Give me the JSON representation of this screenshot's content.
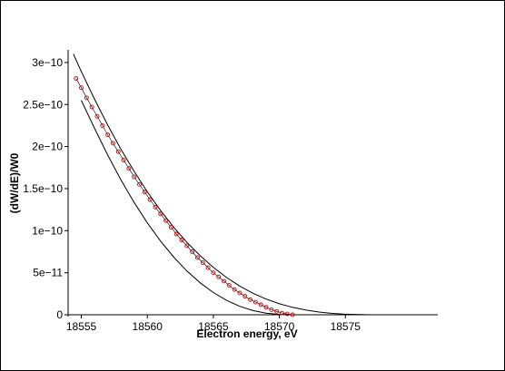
{
  "chart_data": {
    "type": "line",
    "title": "",
    "xlabel": "Electron energy, eV",
    "ylabel": "(dW/dE)/W0",
    "xlim": [
      18554,
      18582
    ],
    "ylim": [
      0,
      3.15e-10
    ],
    "x_ticks": [
      {
        "value": 18555,
        "label": "18555"
      },
      {
        "value": 18560,
        "label": "18560"
      },
      {
        "value": 18565,
        "label": "18565"
      },
      {
        "value": 18570,
        "label": "18570"
      },
      {
        "value": 18575,
        "label": "18575"
      }
    ],
    "y_ticks": [
      {
        "value": 0,
        "label": "0"
      },
      {
        "value": 5e-11,
        "label": "5e−11"
      },
      {
        "value": 1e-10,
        "label": "1e−10"
      },
      {
        "value": 1.5e-10,
        "label": "1.5e−10"
      },
      {
        "value": 2e-10,
        "label": "2e−10"
      },
      {
        "value": 2.5e-10,
        "label": "2.5e−10"
      },
      {
        "value": 3e-10,
        "label": "3e−10"
      }
    ],
    "grid": false,
    "legend": "none",
    "series": [
      {
        "kind": "line",
        "color": "#000000",
        "x": [
          18554.4,
          18555,
          18556,
          18557,
          18558,
          18559,
          18560,
          18561,
          18562,
          18563,
          18564,
          18565,
          18566,
          18567,
          18568,
          18569,
          18570,
          18571,
          18572,
          18573,
          18574,
          18575,
          18576,
          18577,
          18577.4
        ],
        "y": [
          3.1e-10,
          2.893e-10,
          2.563e-10,
          2.256e-10,
          1.969e-10,
          1.705e-10,
          1.462e-10,
          1.24e-10,
          1.04e-10,
          8.61e-11,
          7.02e-11,
          5.63e-11,
          4.43e-11,
          3.41e-11,
          2.56e-11,
          1.87e-11,
          1.31e-11,
          8.8e-12,
          5.6e-12,
          3.2e-12,
          1.6e-12,
          6e-13,
          2e-13,
          0,
          0
        ]
      },
      {
        "kind": "line",
        "color": "#000000",
        "x": [
          18555,
          18556,
          18557,
          18558,
          18559,
          18560,
          18561,
          18562,
          18563,
          18564,
          18565,
          18566,
          18567,
          18568,
          18569,
          18570,
          18571,
          18571.5
        ],
        "y": [
          2.55e-10,
          2.217e-10,
          1.899e-10,
          1.605e-10,
          1.336e-10,
          1.093e-10,
          8.76e-11,
          6.85e-11,
          5.2e-11,
          3.8e-11,
          2.64e-11,
          1.71e-11,
          1e-11,
          5e-12,
          1.8e-12,
          4e-13,
          0,
          0
        ]
      },
      {
        "kind": "scatter",
        "color": "#cc0000",
        "x": [
          18554.6,
          18555.0,
          18555.4,
          18555.8,
          18556.2,
          18556.6,
          18557.0,
          18557.4,
          18557.8,
          18558.2,
          18558.6,
          18559.0,
          18559.4,
          18559.8,
          18560.2,
          18560.6,
          18561.0,
          18561.4,
          18561.8,
          18562.2,
          18562.6,
          18563.0,
          18563.4,
          18563.8,
          18564.2,
          18564.6,
          18565.0,
          18565.4,
          18565.8,
          18566.2,
          18566.6,
          18567.0,
          18567.4,
          18567.8,
          18568.2,
          18568.6,
          18569.0,
          18569.4,
          18569.8,
          18570.2,
          18570.6,
          18571.0
        ],
        "y": [
          2.81e-10,
          2.7e-10,
          2.58e-10,
          2.47e-10,
          2.36e-10,
          2.25e-10,
          2.14e-10,
          2.04e-10,
          1.94e-10,
          1.84e-10,
          1.74e-10,
          1.64e-10,
          1.55e-10,
          1.46e-10,
          1.37e-10,
          1.28e-10,
          1.2e-10,
          1.12e-10,
          1.04e-10,
          9.6e-11,
          8.9e-11,
          8.2e-11,
          7.5e-11,
          6.8e-11,
          6.2e-11,
          5.6e-11,
          5e-11,
          4.5e-11,
          4e-11,
          3.5e-11,
          3e-11,
          2.6e-11,
          2.2e-11,
          1.8e-11,
          1.5e-11,
          1.2e-11,
          9e-12,
          6e-12,
          4e-12,
          2e-12,
          1e-12,
          0
        ]
      }
    ]
  }
}
